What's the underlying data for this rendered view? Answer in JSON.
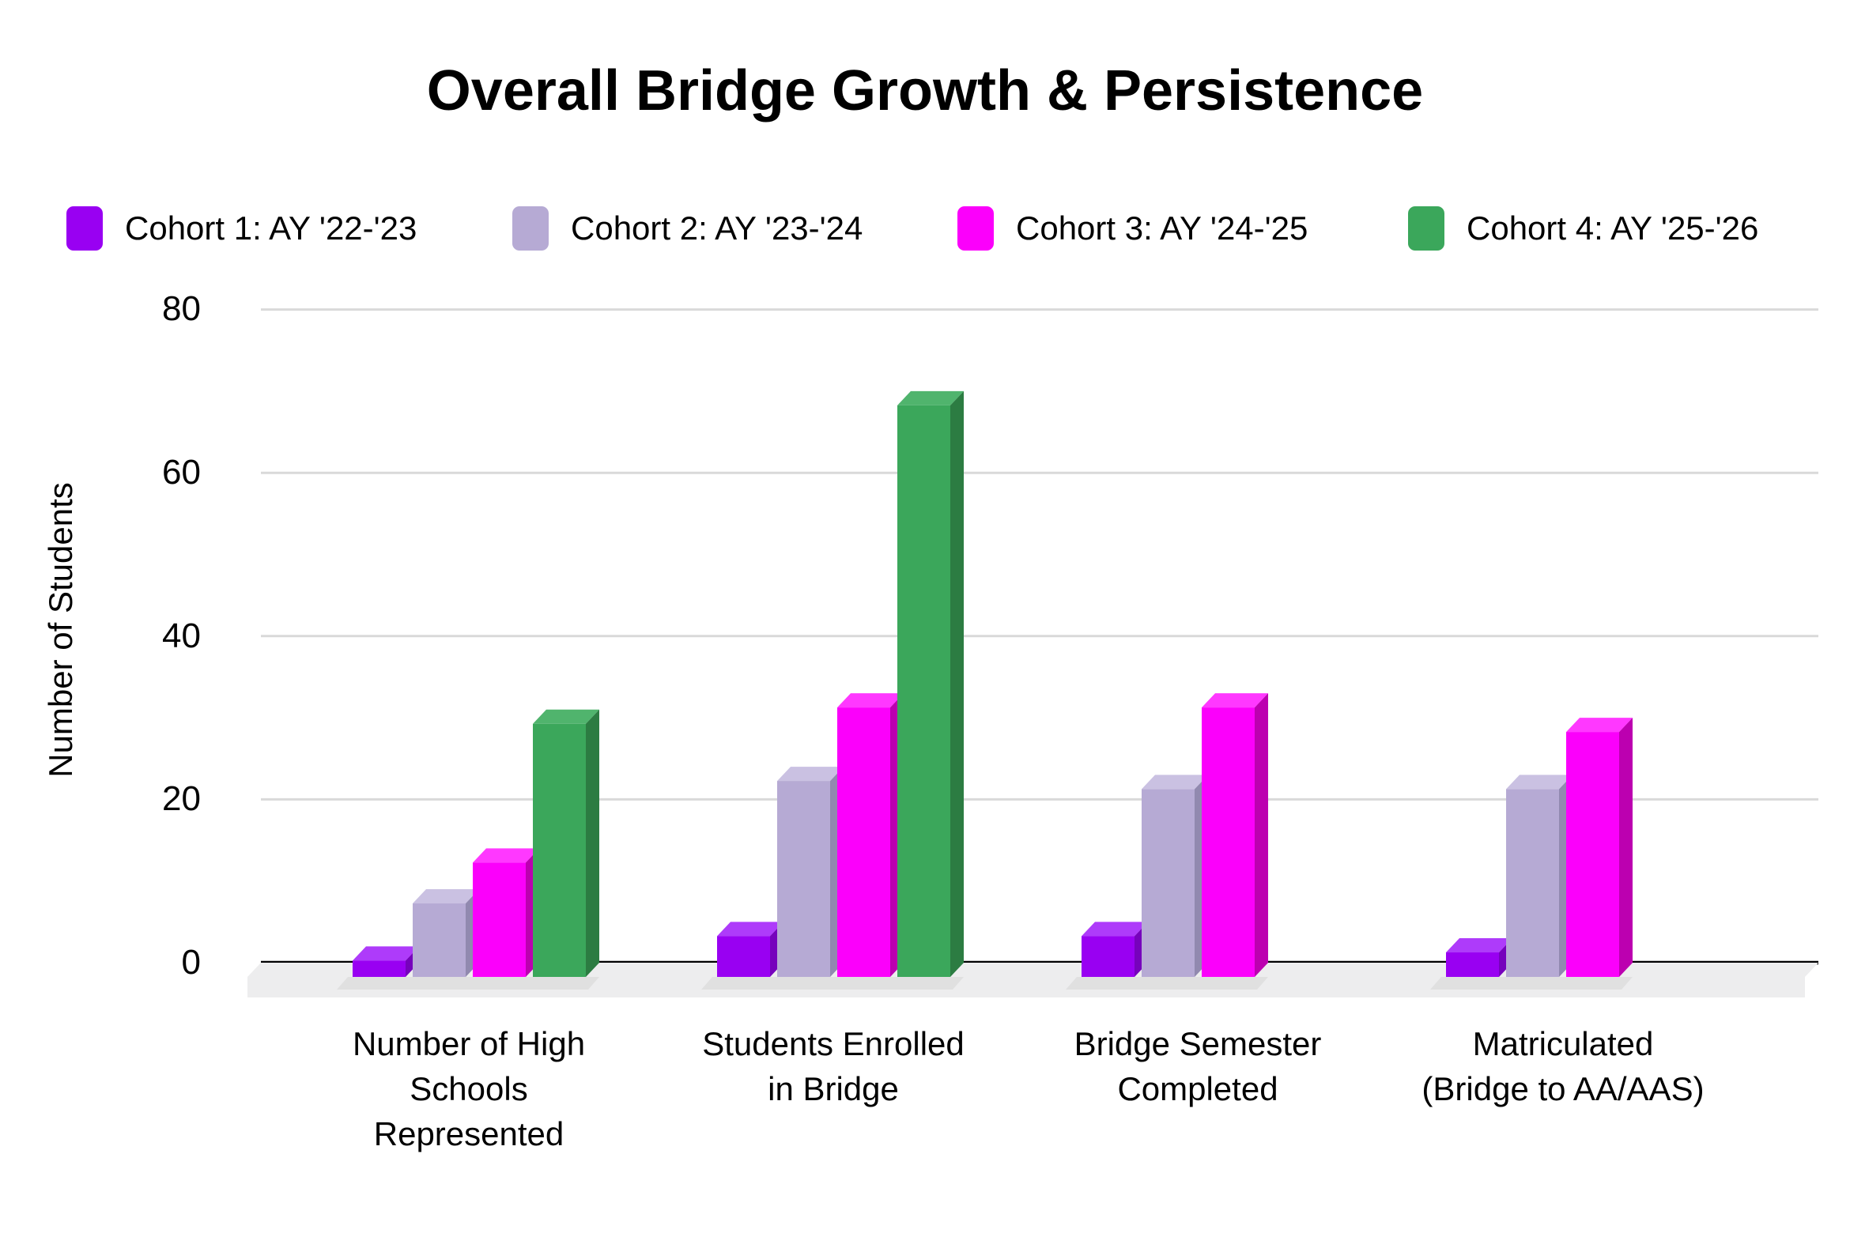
{
  "chart_data": {
    "type": "bar",
    "variant": "3d-column",
    "title": "Overall Bridge Growth & Persistence",
    "ylabel": "Number of Students",
    "yticks": [
      0,
      20,
      40,
      60,
      80
    ],
    "ylim": [
      0,
      80
    ],
    "grid": true,
    "legend_position": "top",
    "background": "#FFFFFF",
    "gridline_color": "#D9D9D9",
    "axis_color": "#000000",
    "floor_color": "#EDEDEE",
    "categories": [
      "Number of High Schools Represented",
      "Students Enrolled in Bridge",
      "Bridge Semester Completed",
      "Matriculated (Bridge to AA/AAS)"
    ],
    "categories_lines": [
      [
        "Number of High",
        "Schools",
        "Represented"
      ],
      [
        "Students Enrolled",
        "in Bridge"
      ],
      [
        "Bridge Semester",
        "Completed"
      ],
      [
        "Matriculated",
        "(Bridge to AA/AAS)"
      ]
    ],
    "series": [
      {
        "name": "Cohort 1: AY '22-'23",
        "color": "#9900F2",
        "color_top": "#AE3BFA",
        "color_side": "#7602BC",
        "values": [
          2,
          5,
          5,
          3
        ]
      },
      {
        "name": "Cohort 2: AY '23-'24",
        "color": "#B6AAD4",
        "color_top": "#CAC1E2",
        "color_side": "#9189AF",
        "values": [
          9,
          24,
          23,
          23
        ]
      },
      {
        "name": "Cohort 3: AY '24-'25",
        "color": "#FB00FB",
        "color_top": "#FF38FF",
        "color_side": "#BC00B0",
        "values": [
          14,
          33,
          33,
          30
        ]
      },
      {
        "name": "Cohort 4: AY '25-'26",
        "color": "#3BA75B",
        "color_top": "#50B46D",
        "color_side": "#2C7C42",
        "values": [
          31,
          70,
          null,
          null
        ]
      }
    ]
  }
}
